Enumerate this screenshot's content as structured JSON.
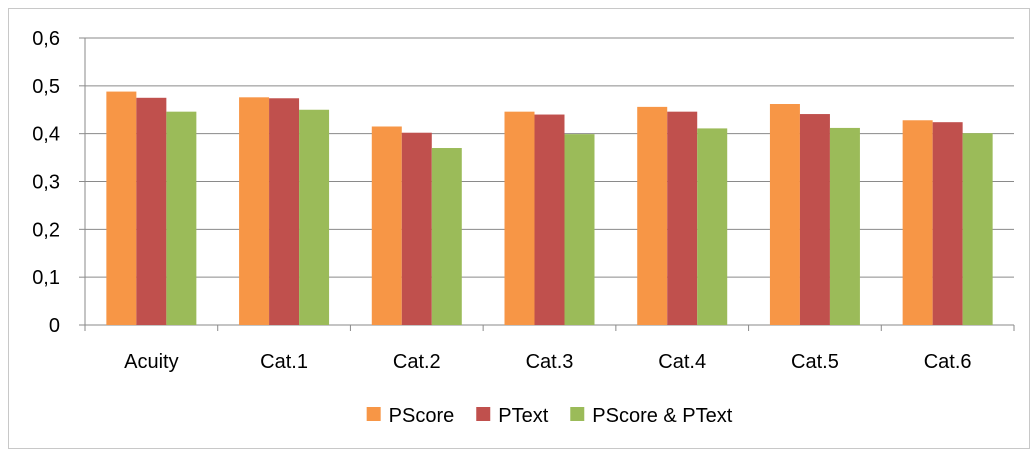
{
  "chart_data": {
    "type": "bar",
    "title": "",
    "xlabel": "",
    "ylabel": "",
    "categories": [
      "Acuity",
      "Cat.1",
      "Cat.2",
      "Cat.3",
      "Cat.4",
      "Cat.5",
      "Cat.6"
    ],
    "series": [
      {
        "name": "PScore",
        "color": "#f79646",
        "values": [
          0.488,
          0.476,
          0.415,
          0.446,
          0.456,
          0.462,
          0.428
        ]
      },
      {
        "name": "PText",
        "color": "#c0504d",
        "values": [
          0.475,
          0.474,
          0.402,
          0.44,
          0.446,
          0.441,
          0.424
        ]
      },
      {
        "name": "PScore & PText",
        "color": "#9bbb59",
        "values": [
          0.446,
          0.45,
          0.37,
          0.399,
          0.411,
          0.412,
          0.401
        ]
      }
    ],
    "ylim": [
      0,
      0.6
    ],
    "yticks": [
      0,
      0.1,
      0.2,
      0.3,
      0.4,
      0.5,
      0.6
    ],
    "ytick_labels": [
      "0",
      "0,1",
      "0,2",
      "0,3",
      "0,4",
      "0,5",
      "0,6"
    ],
    "grid": true,
    "legend_position": "bottom"
  }
}
